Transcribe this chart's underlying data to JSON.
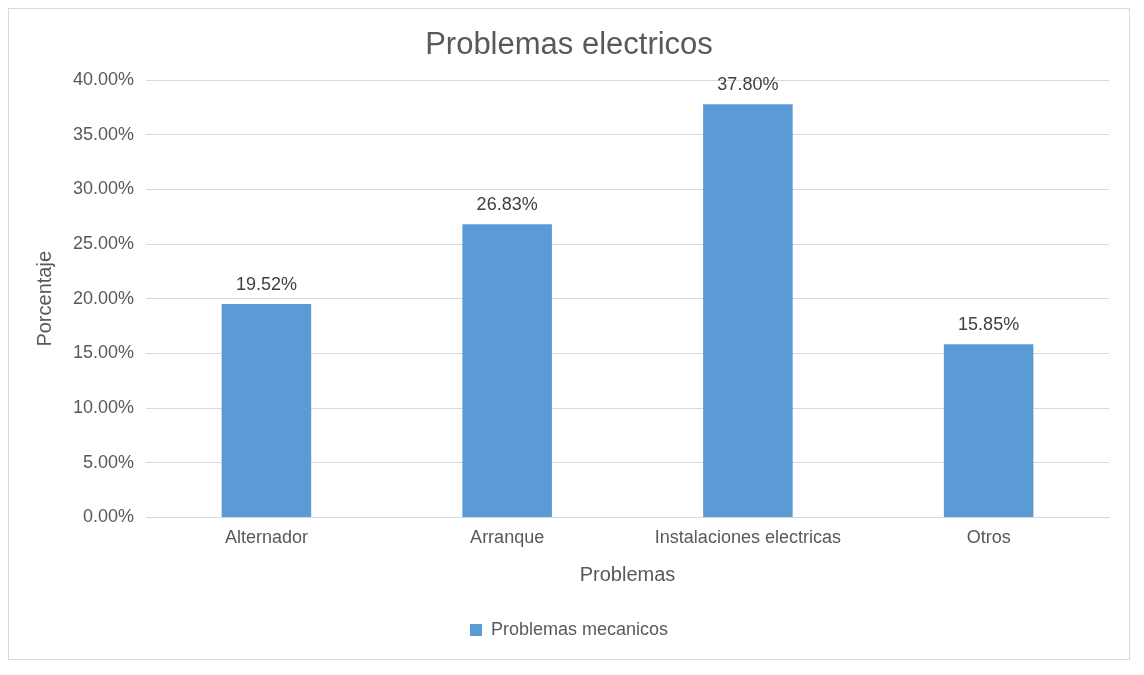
{
  "chart_data": {
    "type": "bar",
    "title": "Problemas electricos",
    "xlabel": "Problemas",
    "ylabel": "Porcentaje",
    "categories": [
      "Alternador",
      "Arranque",
      "Instalaciones electricas",
      "Otros"
    ],
    "series": [
      {
        "name": "Problemas mecanicos",
        "color": "#5b9bd5",
        "values": [
          19.52,
          26.83,
          37.8,
          15.85
        ],
        "value_labels": [
          "19.52%",
          "26.83%",
          "37.80%",
          "15.85%"
        ]
      }
    ],
    "ylim": [
      0,
      40
    ],
    "yticks": [
      {
        "value": 0,
        "label": "0.00%"
      },
      {
        "value": 5,
        "label": "5.00%"
      },
      {
        "value": 10,
        "label": "10.00%"
      },
      {
        "value": 15,
        "label": "15.00%"
      },
      {
        "value": 20,
        "label": "20.00%"
      },
      {
        "value": 25,
        "label": "25.00%"
      },
      {
        "value": 30,
        "label": "30.00%"
      },
      {
        "value": 35,
        "label": "35.00%"
      },
      {
        "value": 40,
        "label": "40.00%"
      }
    ],
    "grid": "y",
    "legend": "bottom"
  }
}
